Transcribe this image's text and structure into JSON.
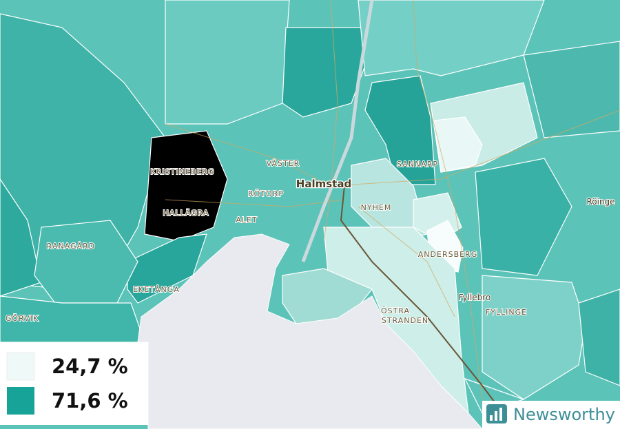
{
  "places": [
    "KRISTINEBERG",
    "VÄSTER",
    "Halmstad",
    "SANNARP",
    "RÖTORP",
    "NYHEM",
    "HALLÄGRA",
    "ALET",
    "RANAGÅRD",
    "ANDERSBERG",
    "EKETÅNGA",
    "Fyllebro",
    "FYLLINGE",
    "ÖSTRA",
    "STRANDEN",
    "GÖRVIK",
    "Röinge"
  ],
  "legend": {
    "items": [
      {
        "label": "24,7 %",
        "color": "#effaf8"
      },
      {
        "label": "71,6 %",
        "color": "#17a398"
      }
    ]
  },
  "brand": "Newsworthy"
}
